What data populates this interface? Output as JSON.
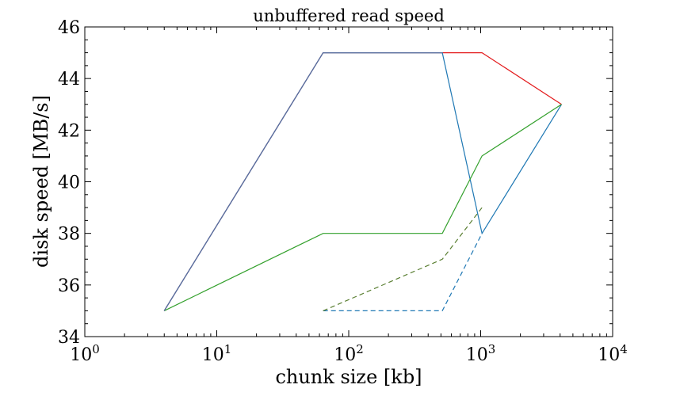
{
  "chart_data": {
    "type": "line",
    "title": "unbuffered read speed",
    "xlabel": "chunk size [kb]",
    "ylabel": "disk speed [MB/s]",
    "xscale": "log",
    "xlim": [
      1,
      10000
    ],
    "ylim": [
      34,
      46
    ],
    "grid": false,
    "legend": "none",
    "x_ticks": [
      {
        "value": 1,
        "base": "10",
        "exp": "0"
      },
      {
        "value": 10,
        "base": "10",
        "exp": "1"
      },
      {
        "value": 100,
        "base": "10",
        "exp": "2"
      },
      {
        "value": 1000,
        "base": "10",
        "exp": "3"
      },
      {
        "value": 10000,
        "base": "10",
        "exp": "4"
      }
    ],
    "y_ticks": [
      {
        "value": 34,
        "label": "34"
      },
      {
        "value": 36,
        "label": "36"
      },
      {
        "value": 38,
        "label": "38"
      },
      {
        "value": 40,
        "label": "40"
      },
      {
        "value": 42,
        "label": "42"
      },
      {
        "value": 44,
        "label": "44"
      },
      {
        "value": 46,
        "label": "46"
      }
    ],
    "series": [
      {
        "color": "#e31a1c",
        "dash": "solid",
        "x": [
          4,
          64,
          512,
          1024,
          4096
        ],
        "y": [
          35,
          45,
          45,
          45,
          43
        ]
      },
      {
        "color": "#1f78b4",
        "dash": "solid",
        "x": [
          4,
          64,
          512,
          1024,
          4096
        ],
        "y": [
          35,
          45,
          45,
          38,
          43
        ]
      },
      {
        "color": "#33a02c",
        "dash": "solid",
        "x": [
          4,
          64,
          512,
          1024,
          4096
        ],
        "y": [
          35,
          38,
          38,
          41,
          43
        ]
      },
      {
        "color": "#5a6fa0",
        "dash": "solid",
        "x": [
          4,
          64,
          512
        ],
        "y": [
          35,
          45,
          45
        ]
      },
      {
        "color": "#1f78b4",
        "dash": "dashed",
        "x": [
          64,
          512,
          1024
        ],
        "y": [
          35,
          35,
          38
        ]
      },
      {
        "color": "#5a7f32",
        "dash": "dashed",
        "x": [
          64,
          512,
          1024
        ],
        "y": [
          35,
          37,
          39
        ]
      }
    ]
  }
}
